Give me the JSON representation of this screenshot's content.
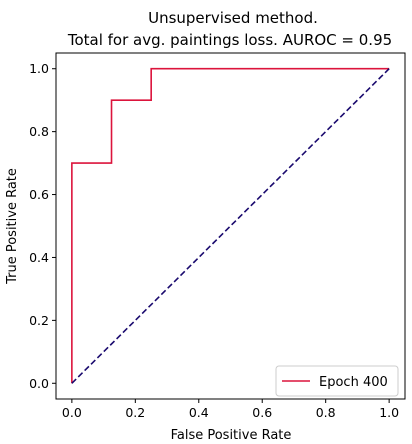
{
  "chart_data": {
    "type": "line",
    "title": "Unsupervised method.",
    "subtitle": "Total for avg. paintings loss. AUROC = 0.95",
    "xlabel": "False Positive Rate",
    "ylabel": "True Positive Rate",
    "xlim": [
      -0.05,
      1.05
    ],
    "ylim": [
      -0.05,
      1.05
    ],
    "xticks": [
      "0.0",
      "0.2",
      "0.4",
      "0.6",
      "0.8",
      "1.0"
    ],
    "yticks": [
      "0.0",
      "0.2",
      "0.4",
      "0.6",
      "0.8",
      "1.0"
    ],
    "grid": false,
    "legend_position": "bottom-right",
    "series": [
      {
        "name": "Epoch 400",
        "color": "#dc143c",
        "style": "solid",
        "x": [
          0.0,
          0.0,
          0.125,
          0.125,
          0.25,
          0.25,
          1.0
        ],
        "y": [
          0.0,
          0.7,
          0.7,
          0.9,
          0.9,
          1.0,
          1.0
        ]
      },
      {
        "color": "#1a0a6e",
        "style": "dashed",
        "x": [
          0.0,
          1.0
        ],
        "y": [
          0.0,
          1.0
        ]
      }
    ]
  }
}
